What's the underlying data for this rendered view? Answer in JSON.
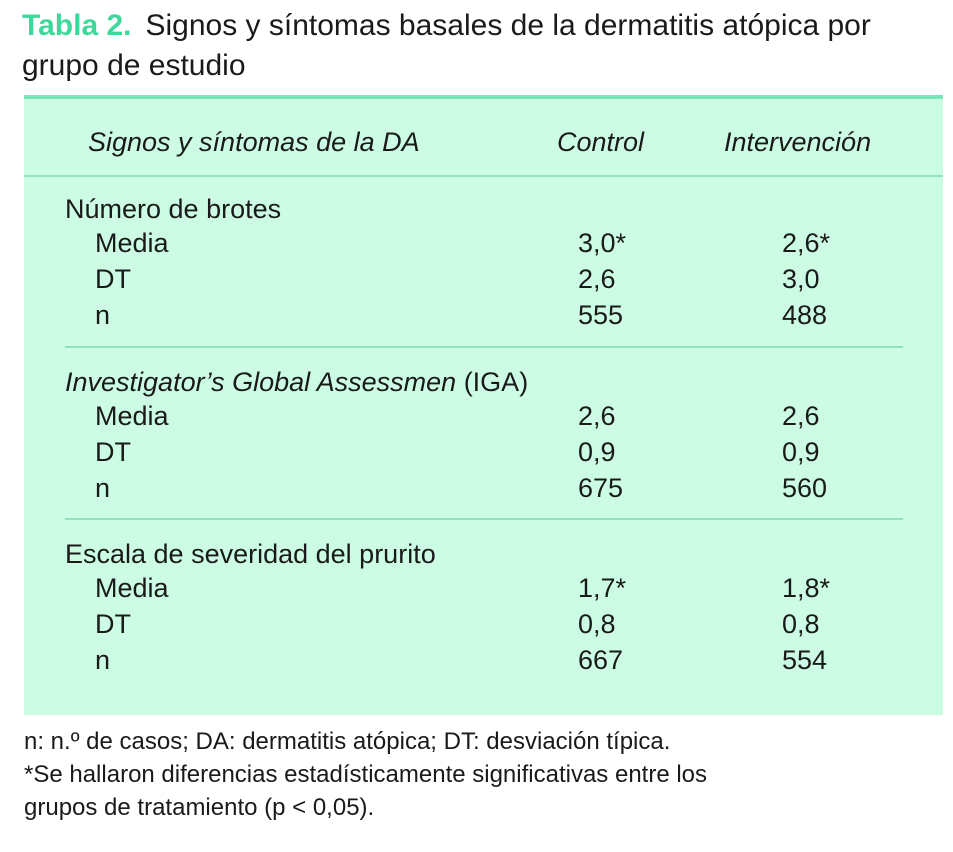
{
  "title": {
    "label": "Tabla 2.",
    "text": "Signos y síntomas basales de la dermatitis atópica por grupo de estudio"
  },
  "table": {
    "headers": {
      "signs": "Signos y síntomas de la DA",
      "control": "Control",
      "intervention": "Intervención"
    },
    "sections": [
      {
        "title": "Número de brotes",
        "title_italic": "",
        "rows": [
          {
            "label": "Media",
            "control": "3,0*",
            "intervention": "2,6*"
          },
          {
            "label": "DT",
            "control": "2,6",
            "intervention": "3,0"
          },
          {
            "label": "n",
            "control": "555",
            "intervention": "488"
          }
        ]
      },
      {
        "title": " (IGA)",
        "title_italic": "Investigator’s Global Assessmen",
        "rows": [
          {
            "label": "Media",
            "control": "2,6",
            "intervention": "2,6"
          },
          {
            "label": "DT",
            "control": "0,9",
            "intervention": "0,9"
          },
          {
            "label": "n",
            "control": "675",
            "intervention": "560"
          }
        ]
      },
      {
        "title": "Escala de severidad del prurito",
        "title_italic": "",
        "rows": [
          {
            "label": "Media",
            "control": "1,7*",
            "intervention": "1,8*"
          },
          {
            "label": "DT",
            "control": "0,8",
            "intervention": "0,8"
          },
          {
            "label": "n",
            "control": "667",
            "intervention": "554"
          }
        ]
      }
    ]
  },
  "notes": [
    "n: n.º de casos; DA: dermatitis atópica; DT: desviación típica.",
    "*Se hallaron diferencias estadísticamente significativas entre los",
    "grupos de tratamiento (p < 0,05)."
  ]
}
